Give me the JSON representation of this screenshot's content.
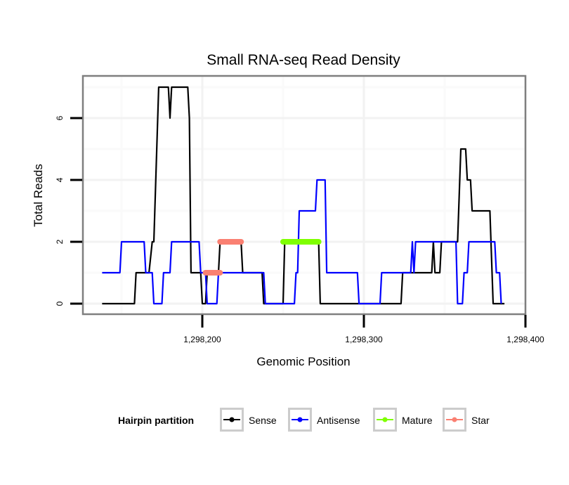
{
  "chart_data": {
    "type": "line",
    "title": "Small RNA-seq Read Density",
    "xlabel": "Genomic Position",
    "ylabel": "Total Reads",
    "xlim": [
      1298126,
      1298400
    ],
    "ylim": [
      -0.35,
      7.35
    ],
    "x_ticks": [
      1298200,
      1298300,
      1298400
    ],
    "x_tick_labels": [
      "1,298,200",
      "1,298,300",
      "1,298,400"
    ],
    "y_ticks": [
      0,
      2,
      4,
      6
    ],
    "y_tick_labels": [
      "0",
      "2",
      "4",
      "6"
    ],
    "x_minor_grid": [
      1298150,
      1298250,
      1298350
    ],
    "y_minor_grid": [
      1,
      3,
      5,
      7
    ],
    "grid": true,
    "legend": {
      "title": "Hairpin partition",
      "position": "bottom",
      "entries": [
        "Sense",
        "Antisense",
        "Mature",
        "Star"
      ]
    },
    "series": [
      {
        "name": "Sense",
        "color": "#000000",
        "kind": "line",
        "x": [
          1298138,
          1298158,
          1298159,
          1298167,
          1298169,
          1298170,
          1298173,
          1298179,
          1298180,
          1298181,
          1298191,
          1298192,
          1298193,
          1298199,
          1298200,
          1298202,
          1298203,
          1298210,
          1298211,
          1298224,
          1298225,
          1298237,
          1298238,
          1298250,
          1298251,
          1298272,
          1298273,
          1298323,
          1298324,
          1298342,
          1298343,
          1298344,
          1298347,
          1298348,
          1298358,
          1298360,
          1298363,
          1298364,
          1298366,
          1298367,
          1298378,
          1298380,
          1298387
        ],
        "y": [
          0,
          0,
          1,
          1,
          2,
          2,
          7,
          7,
          6,
          7,
          7,
          6,
          1,
          1,
          0,
          0,
          1,
          1,
          2,
          2,
          1,
          1,
          0,
          0,
          2,
          2,
          0,
          0,
          1,
          1,
          2,
          1,
          1,
          2,
          2,
          5,
          5,
          4,
          4,
          3,
          3,
          0,
          0
        ]
      },
      {
        "name": "Antisense",
        "color": "#0000ff",
        "kind": "line",
        "x": [
          1298138,
          1298149,
          1298150,
          1298164,
          1298165,
          1298169,
          1298170,
          1298175,
          1298176,
          1298180,
          1298181,
          1298198,
          1298199,
          1298202,
          1298203,
          1298209,
          1298210,
          1298224,
          1298225,
          1298238,
          1298239,
          1298257,
          1298258,
          1298259,
          1298260,
          1298270,
          1298271,
          1298276,
          1298277,
          1298296,
          1298297,
          1298310,
          1298311,
          1298329,
          1298330,
          1298331,
          1298332,
          1298357,
          1298358,
          1298361,
          1298362,
          1298364,
          1298365,
          1298381,
          1298382,
          1298384,
          1298385
        ],
        "y": [
          1,
          1,
          2,
          2,
          1,
          1,
          0,
          0,
          1,
          1,
          2,
          2,
          1,
          1,
          0,
          0,
          1,
          1,
          1,
          1,
          0,
          0,
          1,
          1,
          3,
          3,
          4,
          4,
          1,
          1,
          0,
          0,
          1,
          1,
          2,
          1,
          2,
          2,
          0,
          0,
          1,
          1,
          2,
          2,
          1,
          1,
          0
        ]
      },
      {
        "name": "Mature",
        "color": "#7fff00",
        "kind": "segment",
        "x": [
          1298250,
          1298272
        ],
        "y": [
          2,
          2
        ]
      },
      {
        "name": "Star",
        "color": "#fa8072",
        "kind": "segment",
        "segments": [
          {
            "x": [
              1298202,
              1298211
            ],
            "y": [
              1,
              1
            ]
          },
          {
            "x": [
              1298211,
              1298224
            ],
            "y": [
              2,
              2
            ]
          }
        ]
      }
    ]
  }
}
